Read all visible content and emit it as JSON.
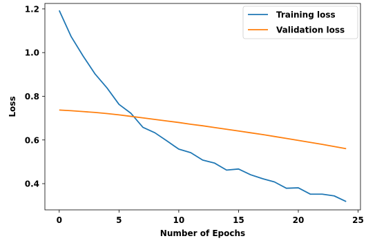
{
  "chart_data": {
    "type": "line",
    "title": "",
    "xlabel": "Number of Epochs",
    "ylabel": "Loss",
    "xlim": [
      -1.2,
      25.2
    ],
    "ylim": [
      0.28,
      1.225
    ],
    "xticks": [
      0,
      5,
      10,
      15,
      20,
      25
    ],
    "xtick_labels": [
      "0",
      "5",
      "10",
      "15",
      "20",
      "25"
    ],
    "yticks": [
      0.4,
      0.6,
      0.8,
      1.0,
      1.2
    ],
    "ytick_labels": [
      "0.4",
      "0.6",
      "0.8",
      "1.0",
      "1.2"
    ],
    "grid": false,
    "legend_position": "top-right",
    "x": [
      0,
      1,
      2,
      3,
      4,
      5,
      6,
      7,
      8,
      9,
      10,
      11,
      12,
      13,
      14,
      15,
      16,
      17,
      18,
      19,
      20,
      21,
      22,
      23,
      24
    ],
    "series": [
      {
        "name": "Training loss",
        "color": "#1f77b4",
        "values": [
          1.193,
          1.073,
          0.984,
          0.902,
          0.838,
          0.763,
          0.722,
          0.658,
          0.633,
          0.596,
          0.558,
          0.542,
          0.508,
          0.494,
          0.462,
          0.467,
          0.441,
          0.423,
          0.408,
          0.379,
          0.381,
          0.352,
          0.352,
          0.344,
          0.318
        ]
      },
      {
        "name": "Validation loss",
        "color": "#ff7f0e",
        "values": [
          0.737,
          0.734,
          0.73,
          0.726,
          0.721,
          0.715,
          0.708,
          0.701,
          0.694,
          0.687,
          0.68,
          0.672,
          0.665,
          0.657,
          0.649,
          0.641,
          0.633,
          0.625,
          0.616,
          0.607,
          0.598,
          0.589,
          0.58,
          0.57,
          0.56
        ]
      }
    ]
  }
}
